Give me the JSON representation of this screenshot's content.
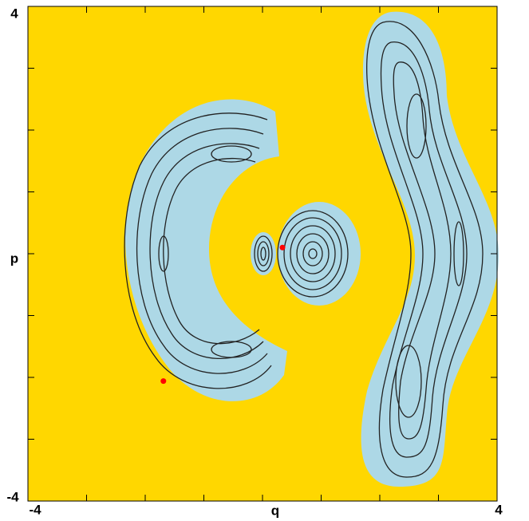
{
  "chart_data": {
    "type": "scatter",
    "xlabel": "q",
    "ylabel": "p",
    "xlim": [
      -4,
      4
    ],
    "ylim": [
      -4,
      4
    ],
    "xticks": [
      -4,
      -3,
      -2,
      -1,
      0,
      1,
      2,
      3,
      4
    ],
    "yticks": [
      -4,
      -3,
      -2,
      -1,
      0,
      1,
      2,
      3,
      4
    ],
    "color": "#ff0000",
    "x": [
      -1.69,
      0.34
    ],
    "values": [
      -2.06,
      0.1
    ]
  }
}
